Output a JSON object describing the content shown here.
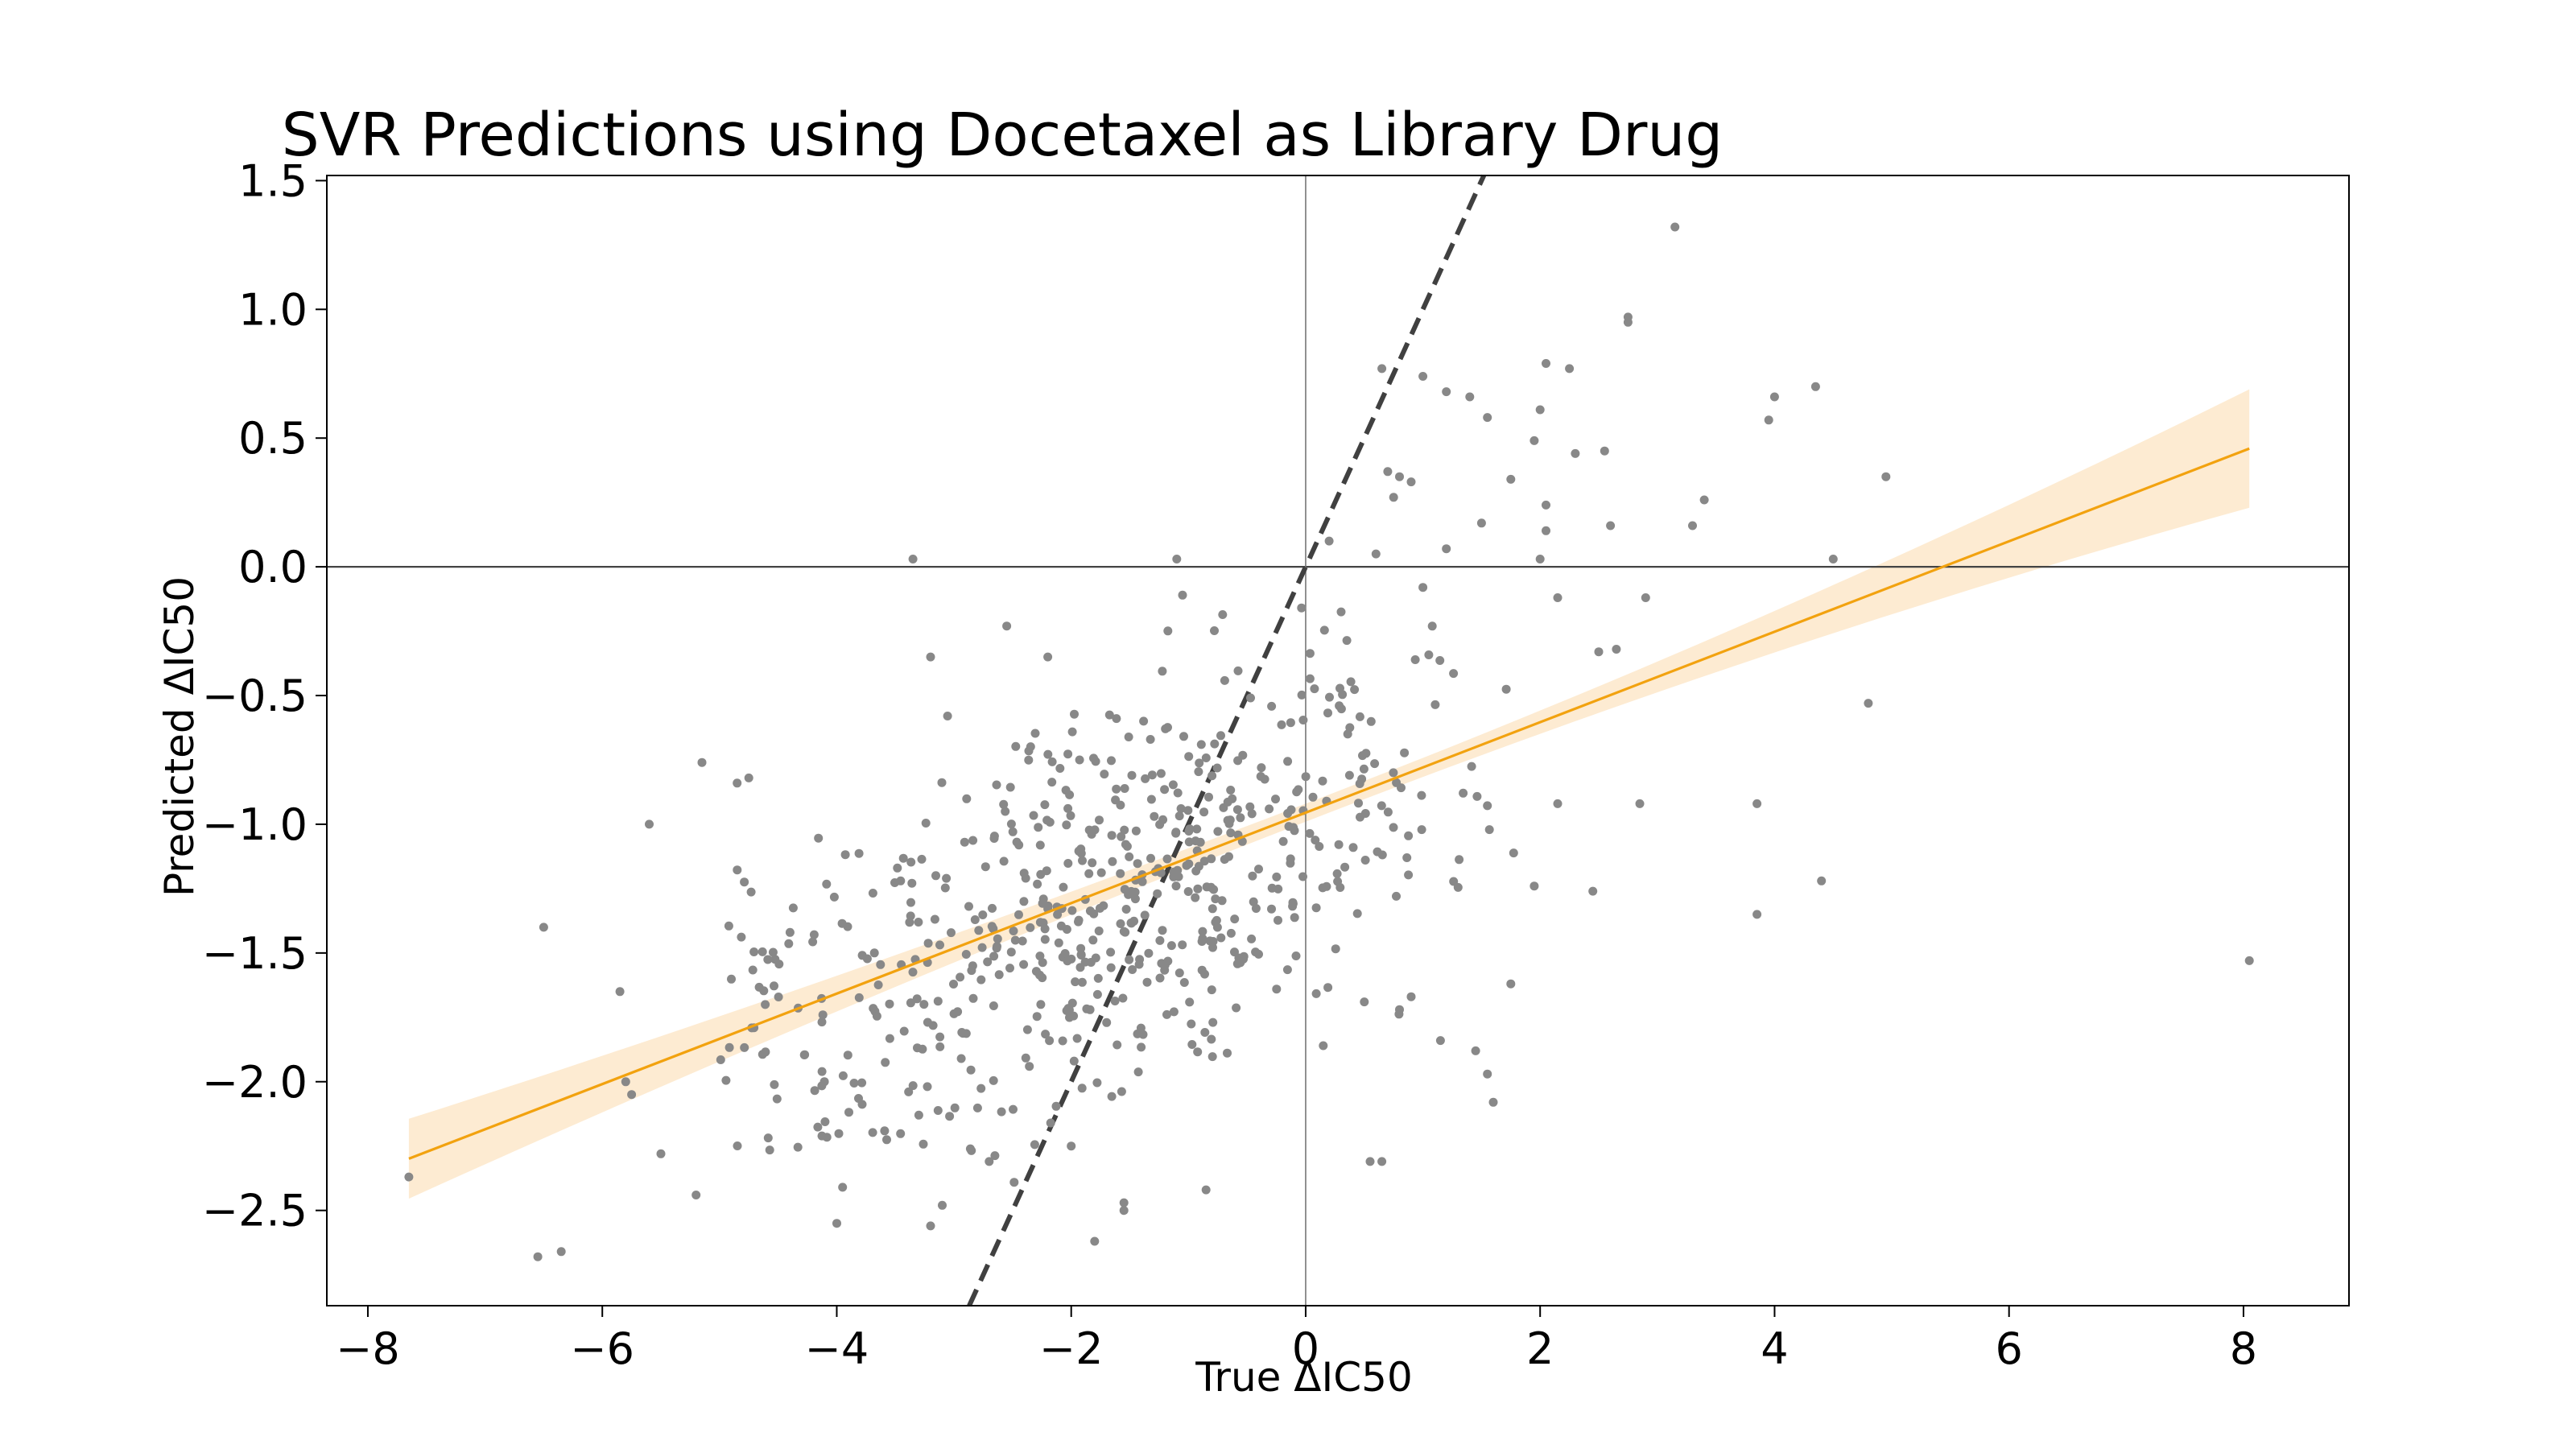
{
  "chart_data": {
    "type": "scatter",
    "title": "SVR Predictions using Docetaxel as Library Drug",
    "xlabel": "True ΔIC50",
    "ylabel": "Predicted ΔIC50",
    "xlim": [
      -8.35,
      8.9
    ],
    "ylim": [
      -2.87,
      1.52
    ],
    "x_ticks": [
      -8,
      -6,
      -4,
      -2,
      0,
      2,
      4,
      6,
      8
    ],
    "x_tick_labels": [
      "−8",
      "−6",
      "−4",
      "−2",
      "0",
      "2",
      "4",
      "6",
      "8"
    ],
    "y_ticks": [
      -2.5,
      -2.0,
      -1.5,
      -1.0,
      -0.5,
      0.0,
      0.5,
      1.0,
      1.5
    ],
    "y_tick_labels": [
      "−2.5",
      "−2.0",
      "−1.5",
      "−1.0",
      "−0.5",
      "0.0",
      "0.5",
      "1.0",
      "1.5"
    ],
    "grid": false,
    "reference_lines": {
      "horizontal_zero": true,
      "vertical_zero": true,
      "identity_line": {
        "slope": 1,
        "intercept": 0,
        "style": "dashed"
      }
    },
    "regression": {
      "x_range": [
        -7.65,
        8.05
      ],
      "slope": 0.1757,
      "intercept": -0.955,
      "ci_at_ends": [
        0.155,
        0.23
      ],
      "ci_at_center": 0.035
    },
    "colors": {
      "points": "#888888",
      "regression_line": "#f2a20f",
      "confidence_band": "#fdebd2",
      "identity_line": "#404040",
      "axes": "#000000"
    },
    "series": [
      {
        "points": [
          [
            -7.65,
            -2.37
          ],
          [
            -6.55,
            -2.68
          ],
          [
            -6.35,
            -2.66
          ],
          [
            -6.5,
            -1.4
          ],
          [
            -5.85,
            -1.65
          ],
          [
            -5.6,
            -1.0
          ],
          [
            -5.8,
            -2.0
          ],
          [
            -5.75,
            -2.05
          ],
          [
            -5.2,
            -2.44
          ],
          [
            -5.5,
            -2.28
          ],
          [
            -5.15,
            -0.76
          ],
          [
            -4.85,
            -0.84
          ],
          [
            -4.75,
            -0.82
          ],
          [
            -3.35,
            0.03
          ],
          [
            -3.2,
            -0.35
          ],
          [
            -3.1,
            -2.48
          ],
          [
            -3.2,
            -2.56
          ],
          [
            -2.55,
            -0.23
          ],
          [
            -2.2,
            -0.35
          ],
          [
            -1.1,
            0.03
          ],
          [
            -1.05,
            -0.11
          ],
          [
            -4.0,
            -2.55
          ],
          [
            -3.95,
            -2.41
          ],
          [
            -2.0,
            -2.25
          ],
          [
            -1.55,
            -2.47
          ],
          [
            -1.55,
            -2.5
          ],
          [
            -1.8,
            -2.62
          ],
          [
            -0.85,
            -2.42
          ],
          [
            -2.7,
            -2.31
          ],
          [
            -3.3,
            -2.13
          ],
          [
            0.55,
            -2.31
          ],
          [
            0.65,
            -2.31
          ],
          [
            1.6,
            -2.08
          ],
          [
            1.55,
            -1.97
          ],
          [
            1.45,
            -1.88
          ],
          [
            1.15,
            -1.84
          ],
          [
            1.75,
            -1.62
          ],
          [
            0.15,
            -1.86
          ],
          [
            0.5,
            -1.69
          ],
          [
            0.8,
            -1.72
          ],
          [
            0.9,
            -1.67
          ],
          [
            0.2,
            0.1
          ],
          [
            0.6,
            0.05
          ],
          [
            0.8,
            0.35
          ],
          [
            0.9,
            0.33
          ],
          [
            1.0,
            -0.08
          ],
          [
            1.0,
            0.74
          ],
          [
            1.2,
            0.68
          ],
          [
            1.4,
            0.66
          ],
          [
            1.55,
            0.58
          ],
          [
            1.5,
            0.17
          ],
          [
            1.75,
            0.34
          ],
          [
            0.7,
            0.37
          ],
          [
            0.75,
            0.27
          ],
          [
            1.2,
            0.07
          ],
          [
            0.65,
            0.77
          ],
          [
            2.0,
            0.61
          ],
          [
            2.05,
            0.79
          ],
          [
            2.25,
            0.77
          ],
          [
            2.3,
            0.44
          ],
          [
            2.05,
            0.24
          ],
          [
            2.05,
            0.14
          ],
          [
            2.0,
            0.03
          ],
          [
            2.15,
            -0.12
          ],
          [
            1.95,
            0.49
          ],
          [
            2.55,
            0.45
          ],
          [
            2.6,
            0.16
          ],
          [
            2.75,
            0.97
          ],
          [
            2.75,
            0.95
          ],
          [
            3.15,
            1.32
          ],
          [
            3.3,
            0.16
          ],
          [
            3.4,
            0.26
          ],
          [
            2.9,
            -0.12
          ],
          [
            2.65,
            -0.32
          ],
          [
            2.5,
            -0.33
          ],
          [
            2.45,
            -1.26
          ],
          [
            2.85,
            -0.92
          ],
          [
            2.15,
            -0.92
          ],
          [
            1.95,
            -1.24
          ],
          [
            3.95,
            0.57
          ],
          [
            4.0,
            0.66
          ],
          [
            4.35,
            0.7
          ],
          [
            4.5,
            0.03
          ],
          [
            4.95,
            0.35
          ],
          [
            4.8,
            -0.53
          ],
          [
            3.85,
            -0.92
          ],
          [
            3.85,
            -1.35
          ],
          [
            4.4,
            -1.22
          ],
          [
            8.05,
            -1.53
          ]
        ],
        "cluster_note": "plus a dense central cloud of several hundred points around the regression line between x≈−5.2 and x≈1.6"
      }
    ]
  }
}
